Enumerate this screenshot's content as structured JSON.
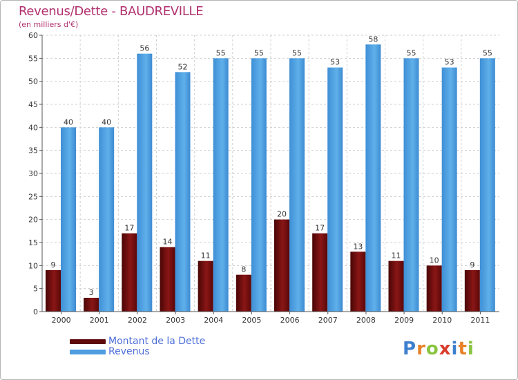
{
  "header": {
    "title": "Revenus/Dette - BAUDREVILLE",
    "subtitle": "(en milliers d'€)"
  },
  "legend": {
    "items": [
      {
        "label": "Montant de la Dette",
        "color": "#7a1010"
      },
      {
        "label": "Revenus",
        "color": "#4f9de0"
      }
    ]
  },
  "logo": {
    "text": "Proxiti",
    "letters": [
      {
        "ch": "P",
        "color": "#3d7fcf"
      },
      {
        "ch": "r",
        "color": "#e8822a"
      },
      {
        "ch": "o",
        "color": "#8ac43f"
      },
      {
        "ch": "x",
        "color": "#d93c2c"
      },
      {
        "ch": "i",
        "color": "#3d7fcf"
      },
      {
        "ch": "t",
        "color": "#e8822a"
      },
      {
        "ch": "i",
        "color": "#8ac43f"
      }
    ]
  },
  "chart_data": {
    "type": "bar",
    "title": "Revenus/Dette - BAUDREVILLE",
    "subtitle": "(en milliers d'€)",
    "categories": [
      "2000",
      "2001",
      "2002",
      "2003",
      "2004",
      "2005",
      "2006",
      "2007",
      "2008",
      "2009",
      "2010",
      "2011"
    ],
    "series": [
      {
        "name": "Montant de la Dette",
        "color": "#7a1010",
        "values": [
          9,
          3,
          17,
          14,
          11,
          8,
          20,
          17,
          13,
          11,
          10,
          9
        ]
      },
      {
        "name": "Revenus",
        "color": "#4f9de0",
        "values": [
          40,
          40,
          56,
          52,
          55,
          55,
          55,
          53,
          58,
          55,
          53,
          55
        ]
      }
    ],
    "yticks": [
      0,
      5,
      10,
      15,
      20,
      25,
      30,
      35,
      40,
      45,
      50,
      55,
      60
    ],
    "ylim": [
      0,
      60
    ],
    "grid": true,
    "legend_position": "bottom-left",
    "data_labels": true
  }
}
